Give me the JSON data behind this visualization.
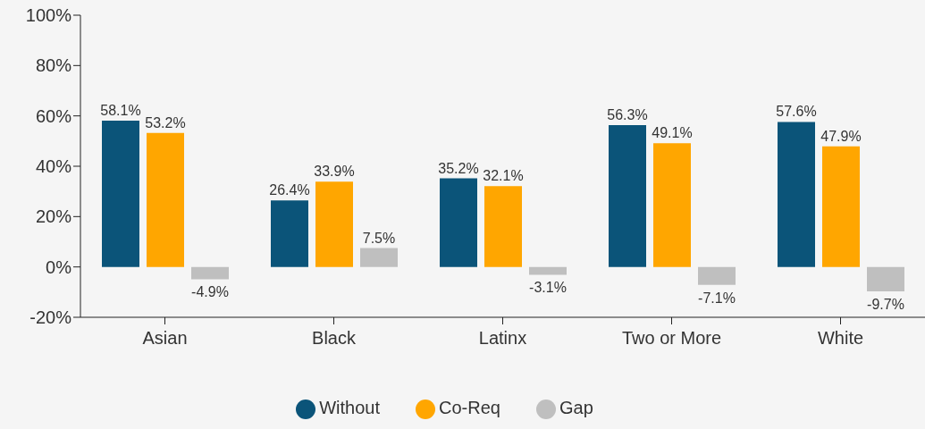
{
  "chart_data": {
    "type": "bar",
    "categories": [
      "Asian",
      "Black",
      "Latinx",
      "Two or More",
      "White"
    ],
    "series": [
      {
        "name": "Without",
        "color": "#0b5479",
        "values": [
          58.1,
          26.4,
          35.2,
          56.3,
          57.6
        ]
      },
      {
        "name": "Co-Req",
        "color": "#ffa600",
        "values": [
          53.2,
          33.9,
          32.1,
          49.1,
          47.9
        ]
      },
      {
        "name": "Gap",
        "color": "#bfbfbf",
        "values": [
          -4.9,
          7.5,
          -3.1,
          -7.1,
          -9.7
        ]
      }
    ],
    "ylim": [
      -20,
      100
    ],
    "yticks": [
      {
        "value": -20,
        "label": "-20%"
      },
      {
        "value": 0,
        "label": "0%"
      },
      {
        "value": 20,
        "label": "20%"
      },
      {
        "value": 40,
        "label": "40%"
      },
      {
        "value": 60,
        "label": "60%"
      },
      {
        "value": 80,
        "label": "80%"
      },
      {
        "value": 100,
        "label": "100%"
      }
    ],
    "value_labels": [
      [
        "58.1%",
        "26.4%",
        "35.2%",
        "56.3%",
        "57.6%"
      ],
      [
        "53.2%",
        "33.9%",
        "32.1%",
        "49.1%",
        "47.9%"
      ],
      [
        "-4.9%",
        "7.5%",
        "-3.1%",
        "-7.1%",
        "-9.7%"
      ]
    ],
    "grid": false,
    "legend": "bottom"
  }
}
